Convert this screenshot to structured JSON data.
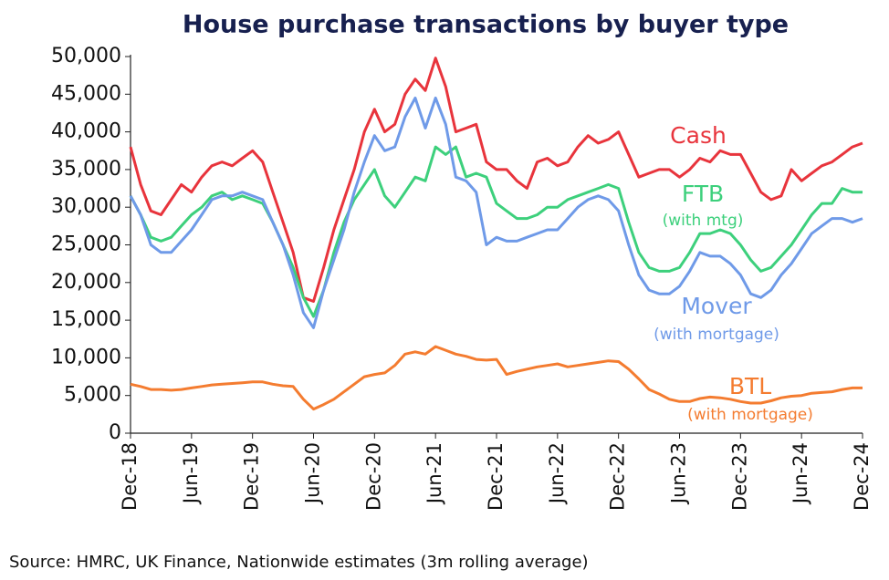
{
  "chart_data": {
    "type": "line",
    "title": "House purchase transactions by buyer type",
    "source": "Source: HMRC, UK Finance, Nationwide estimates (3m rolling average)",
    "categories": [
      "Dec-18",
      null,
      null,
      null,
      null,
      null,
      "Jun-19",
      null,
      null,
      null,
      null,
      null,
      "Dec-19",
      null,
      null,
      null,
      null,
      null,
      "Jun-20",
      null,
      null,
      null,
      null,
      null,
      "Dec-20",
      null,
      null,
      null,
      null,
      null,
      "Jun-21",
      null,
      null,
      null,
      null,
      null,
      "Dec-21",
      null,
      null,
      null,
      null,
      null,
      "Jun-22",
      null,
      null,
      null,
      null,
      null,
      "Dec-22",
      null,
      null,
      null,
      null,
      null,
      "Jun-23",
      null,
      null,
      null,
      null,
      null,
      "Dec-23",
      null,
      null,
      null,
      null,
      null,
      "Jun-24",
      null,
      null,
      null,
      null,
      null,
      "Dec-24"
    ],
    "series": [
      {
        "name": "Cash",
        "color": "#e8343c",
        "values": [
          38000,
          33000,
          29500,
          29000,
          31000,
          33000,
          32000,
          34000,
          35500,
          36000,
          35500,
          36500,
          37500,
          36000,
          32000,
          28000,
          24000,
          18000,
          17500,
          22000,
          27000,
          31000,
          35000,
          40000,
          43000,
          40000,
          41000,
          45000,
          47000,
          45500,
          49800,
          46000,
          40000,
          40500,
          41000,
          36000,
          35000,
          35000,
          33500,
          32500,
          36000,
          36500,
          35500,
          36000,
          38000,
          39500,
          38500,
          39000,
          40000,
          37000,
          34000,
          34500,
          35000,
          35000,
          34000,
          35000,
          36500,
          36000,
          37500,
          37000,
          37000,
          34500,
          32000,
          31000,
          31500,
          35000,
          33500,
          34500,
          35500,
          36000,
          37000,
          38000,
          38500
        ]
      },
      {
        "name": "FTB",
        "note": "(with mtg)",
        "color": "#3dd07c",
        "values": [
          31500,
          29000,
          26000,
          25500,
          26000,
          27500,
          29000,
          30000,
          31500,
          32000,
          31000,
          31500,
          31000,
          30500,
          28000,
          25000,
          22000,
          18000,
          15500,
          19000,
          24000,
          28000,
          31000,
          33000,
          35000,
          31500,
          30000,
          32000,
          34000,
          33500,
          38000,
          37000,
          38000,
          34000,
          34500,
          34000,
          30500,
          29500,
          28500,
          28500,
          29000,
          30000,
          30000,
          31000,
          31500,
          32000,
          32500,
          33000,
          32500,
          28000,
          24000,
          22000,
          21500,
          21500,
          22000,
          24000,
          26500,
          26500,
          27000,
          26500,
          25000,
          23000,
          21500,
          22000,
          23500,
          25000,
          27000,
          29000,
          30500,
          30500,
          32500,
          32000,
          32000
        ]
      },
      {
        "name": "Mover",
        "note": "(with mortgage)",
        "color": "#6f9ae8",
        "values": [
          31500,
          29000,
          25000,
          24000,
          24000,
          25500,
          27000,
          29000,
          31000,
          31500,
          31500,
          32000,
          31500,
          31000,
          28000,
          25000,
          21000,
          16000,
          14000,
          19000,
          23000,
          27000,
          32000,
          36000,
          39500,
          37500,
          38000,
          42000,
          44500,
          40500,
          44500,
          41000,
          34000,
          33500,
          32000,
          25000,
          26000,
          25500,
          25500,
          26000,
          26500,
          27000,
          27000,
          28500,
          30000,
          31000,
          31500,
          31000,
          29500,
          25000,
          21000,
          19000,
          18500,
          18500,
          19500,
          21500,
          24000,
          23500,
          23500,
          22500,
          21000,
          18500,
          18000,
          19000,
          21000,
          22500,
          24500,
          26500,
          27500,
          28500,
          28500,
          28000,
          28500
        ]
      },
      {
        "name": "BTL",
        "note": "(with mortgage)",
        "color": "#f47c30",
        "values": [
          6500,
          6200,
          5800,
          5800,
          5700,
          5800,
          6000,
          6200,
          6400,
          6500,
          6600,
          6700,
          6800,
          6800,
          6500,
          6300,
          6200,
          4500,
          3200,
          3800,
          4500,
          5500,
          6500,
          7500,
          7800,
          8000,
          9000,
          10500,
          10800,
          10500,
          11500,
          11000,
          10500,
          10200,
          9800,
          9700,
          9800,
          7800,
          8200,
          8500,
          8800,
          9000,
          9200,
          8800,
          9000,
          9200,
          9400,
          9600,
          9500,
          8500,
          7200,
          5800,
          5200,
          4500,
          4200,
          4200,
          4600,
          4800,
          4700,
          4500,
          4200,
          4000,
          4000,
          4300,
          4700,
          4900,
          5000,
          5300,
          5400,
          5500,
          5800,
          6000,
          6000
        ]
      }
    ],
    "ylim": [
      0,
      50000
    ],
    "yticks": [
      0,
      {
        "value": 5000,
        "label": "5,000"
      },
      {
        "value": 10000,
        "label": "10,000"
      },
      {
        "value": 15000,
        "label": "15,000"
      },
      {
        "value": 20000,
        "label": "20,000"
      },
      {
        "value": 25000,
        "label": "25,000"
      },
      {
        "value": 30000,
        "label": "30,000"
      },
      {
        "value": 35000,
        "label": "35,000"
      },
      {
        "value": 40000,
        "label": "40,000"
      },
      {
        "value": 45000,
        "label": "45,000"
      },
      {
        "value": 50000,
        "label": "50,000"
      }
    ],
    "grid": false
  }
}
